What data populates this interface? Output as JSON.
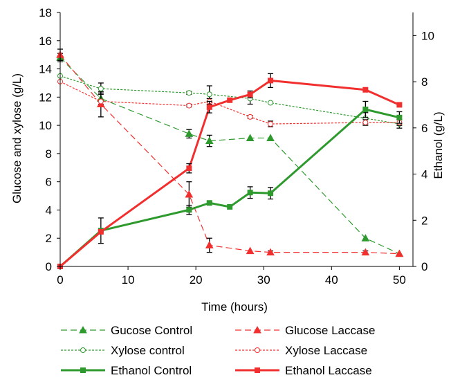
{
  "chart_data": {
    "type": "line",
    "x": [
      0,
      6,
      19,
      22,
      28,
      31,
      45,
      50
    ],
    "xlabel": "Time (hours)",
    "ylabel_left": "Glucose and xylose (g/L)",
    "ylabel_right": "Ethanol (g/L)",
    "xlim": [
      0,
      52
    ],
    "ylim_left": [
      0,
      18
    ],
    "ylim_right": [
      0,
      11
    ],
    "xticks": [
      "0",
      "10",
      "20",
      "30",
      "40",
      "50"
    ],
    "yticks_left": [
      "0",
      "2",
      "4",
      "6",
      "8",
      "10",
      "12",
      "14",
      "16",
      "18"
    ],
    "yticks_right": [
      "0",
      "2",
      "4",
      "6",
      "8",
      "10"
    ],
    "grid": false,
    "legend_position": "bottom",
    "series": [
      {
        "name": "Gucose Control",
        "axis": "left",
        "color": "#2e9a2e",
        "dash": "long",
        "marker": "triangle",
        "x": [
          0,
          6,
          19,
          22,
          28,
          31,
          45,
          50
        ],
        "y": [
          14.8,
          11.9,
          9.4,
          8.9,
          9.1,
          9.1,
          2.0,
          0.9
        ],
        "err": [
          0.3,
          0.4,
          0.3,
          0.4,
          0,
          0,
          0,
          0
        ]
      },
      {
        "name": "Glucose Laccase",
        "axis": "left",
        "color": "#f22f2f",
        "dash": "long",
        "marker": "triangle",
        "x": [
          0,
          6,
          19,
          22,
          28,
          31,
          45,
          50
        ],
        "y": [
          15.0,
          11.5,
          5.1,
          1.5,
          1.1,
          1.0,
          1.0,
          0.9
        ],
        "err": [
          0.4,
          0.9,
          0.9,
          0.5,
          0,
          0.1,
          0.1,
          0
        ]
      },
      {
        "name": "Xylose control",
        "axis": "left",
        "color": "#2e9a2e",
        "dash": "short",
        "marker": "circle",
        "x": [
          0,
          6,
          19,
          22,
          28,
          31,
          45,
          50
        ],
        "y": [
          13.5,
          12.6,
          12.3,
          12.2,
          11.9,
          11.6,
          10.5,
          10.1
        ],
        "err": [
          0,
          0.4,
          0.1,
          0.6,
          0.4,
          0,
          0.4,
          0.3
        ]
      },
      {
        "name": "Xylose Laccase",
        "axis": "left",
        "color": "#f22f2f",
        "dash": "short",
        "marker": "circle",
        "x": [
          0,
          6,
          19,
          22,
          28,
          31,
          45,
          50
        ],
        "y": [
          13.1,
          11.7,
          11.4,
          11.7,
          10.6,
          10.1,
          10.2,
          10.2
        ],
        "err": [
          0,
          0,
          0.1,
          0.2,
          0.1,
          0.2,
          0.2,
          0.2
        ]
      },
      {
        "name": "Ethanol Control",
        "axis": "right",
        "color": "#2e9a2e",
        "dash": "solid",
        "marker": "square",
        "x": [
          0,
          6,
          19,
          22,
          25,
          28,
          31,
          45,
          50
        ],
        "y": [
          0,
          1.55,
          2.45,
          2.75,
          2.58,
          3.2,
          3.17,
          6.8,
          6.45
        ],
        "err": [
          0,
          0.55,
          0.2,
          0,
          0,
          0.25,
          0.25,
          0.35,
          0.25
        ]
      },
      {
        "name": "Ethanol Laccase",
        "axis": "right",
        "color": "#f22f2f",
        "dash": "solid",
        "marker": "square",
        "x": [
          0,
          6,
          19,
          22,
          25,
          28,
          31,
          45,
          50
        ],
        "y": [
          0,
          1.5,
          4.25,
          6.9,
          7.2,
          7.45,
          8.05,
          7.65,
          7.0
        ],
        "err": [
          0,
          0,
          0.2,
          0.25,
          0,
          0.15,
          0.3,
          0,
          0
        ]
      }
    ]
  }
}
